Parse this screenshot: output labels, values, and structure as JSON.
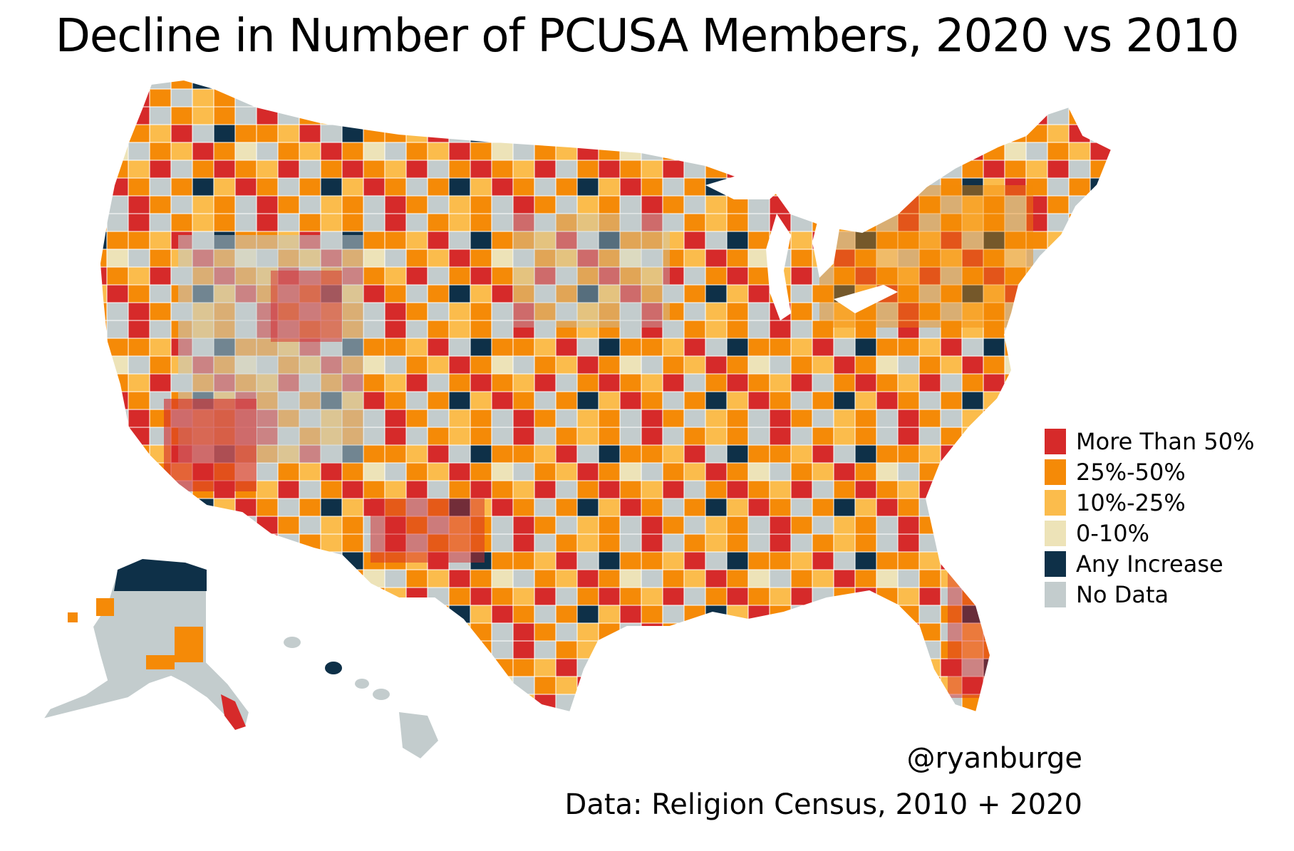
{
  "title": "Decline in Number of PCUSA Members, 2020 vs 2010",
  "legend": [
    {
      "label": "More Than 50%",
      "color": "#d62a2a"
    },
    {
      "label": "25%-50%",
      "color": "#f58a07"
    },
    {
      "label": "10%-25%",
      "color": "#fbbc4c"
    },
    {
      "label": "0-10%",
      "color": "#ede3b8"
    },
    {
      "label": "Any Increase",
      "color": "#0e3048"
    },
    {
      "label": "No Data",
      "color": "#c3cccd"
    }
  ],
  "credit_handle": "@ryanburge",
  "credit_source": "Data: Religion Census, 2010 + 2020",
  "map": {
    "regions": [
      "contiguous-us",
      "alaska",
      "hawaii"
    ],
    "county_border_color": "#ffffff"
  }
}
